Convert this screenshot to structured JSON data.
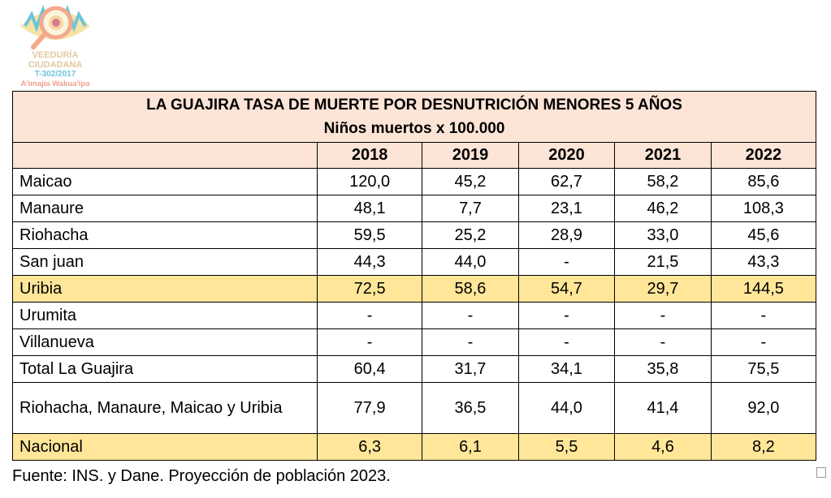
{
  "logo": {
    "line1": "VEEDURÍA",
    "line2": "CIUDADANA",
    "line3": "T-302/2017",
    "line4": "A'imajia Wakua'ipa"
  },
  "table": {
    "title": "LA GUAJIRA TASA DE MUERTE POR DESNUTRICIÓN MENORES 5 AÑOS",
    "subtitle": "Niños muertos x 100.000",
    "years": [
      "2018",
      "2019",
      "2020",
      "2021",
      "2022"
    ],
    "rows": [
      {
        "label": "Maicao",
        "values": [
          "120,0",
          "45,2",
          "62,7",
          "58,2",
          "85,6"
        ]
      },
      {
        "label": "Manaure",
        "values": [
          "48,1",
          "7,7",
          "23,1",
          "46,2",
          "108,3"
        ]
      },
      {
        "label": "Riohacha",
        "values": [
          "59,5",
          "25,2",
          "28,9",
          "33,0",
          "45,6"
        ]
      },
      {
        "label": "San juan",
        "values": [
          "44,3",
          "44,0",
          "-",
          "21,5",
          "43,3"
        ]
      },
      {
        "label": "Uribia",
        "values": [
          "72,5",
          "58,6",
          "54,7",
          "29,7",
          "144,5"
        ]
      },
      {
        "label": "Urumita",
        "values": [
          "-",
          "-",
          "-",
          "-",
          "-"
        ]
      },
      {
        "label": "Villanueva",
        "values": [
          "-",
          "-",
          "-",
          "-",
          "-"
        ]
      },
      {
        "label": "Total La Guajira",
        "values": [
          "60,4",
          "31,7",
          "34,1",
          "35,8",
          "75,5"
        ]
      },
      {
        "label": "Riohacha, Manaure, Maicao y Uribia",
        "values": [
          "77,9",
          "36,5",
          "44,0",
          "41,4",
          "92,0"
        ]
      },
      {
        "label": "Nacional",
        "values": [
          "6,3",
          "6,1",
          "5,5",
          "4,6",
          "8,2"
        ]
      }
    ]
  },
  "source": "Fuente: INS. y Dane. Proyección de población 2023.",
  "colors": {
    "header": "#fce4d6",
    "highlight": "#ffe699"
  }
}
